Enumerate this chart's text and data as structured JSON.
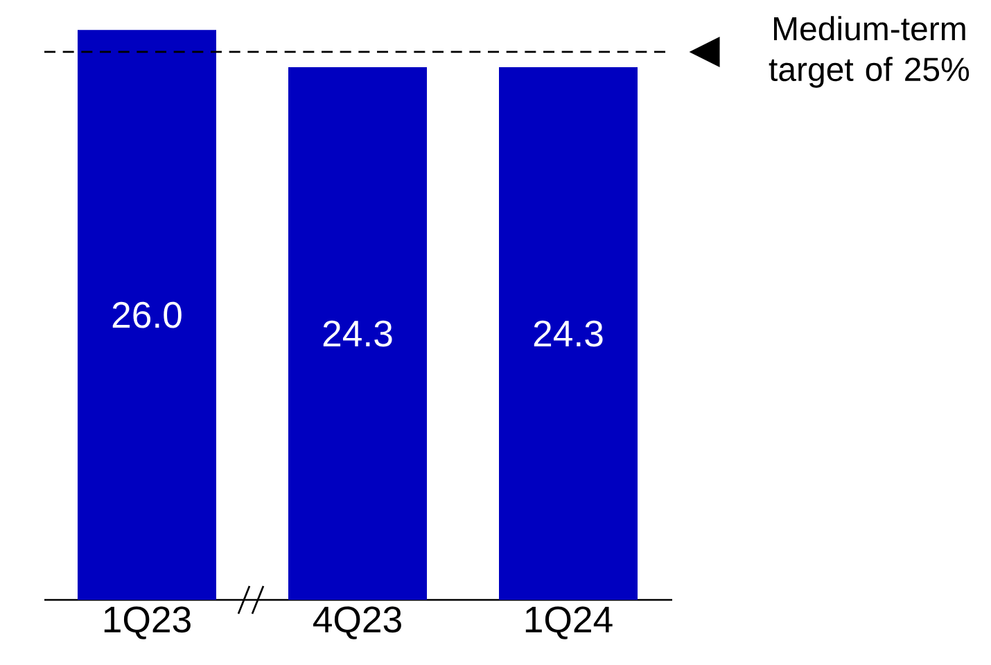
{
  "chart_data": {
    "type": "bar",
    "categories": [
      "1Q23",
      "4Q23",
      "1Q24"
    ],
    "values": [
      26.0,
      24.3,
      24.3
    ],
    "value_labels": [
      "26.0",
      "24.3",
      "24.3"
    ],
    "color": "#0000c0",
    "tick_labels": "x",
    "ref_lines": [
      {
        "axis": "y",
        "value": 25,
        "label": "Medium-term target of 25%",
        "color": "#000000",
        "line_style": "dashed"
      }
    ]
  }
}
